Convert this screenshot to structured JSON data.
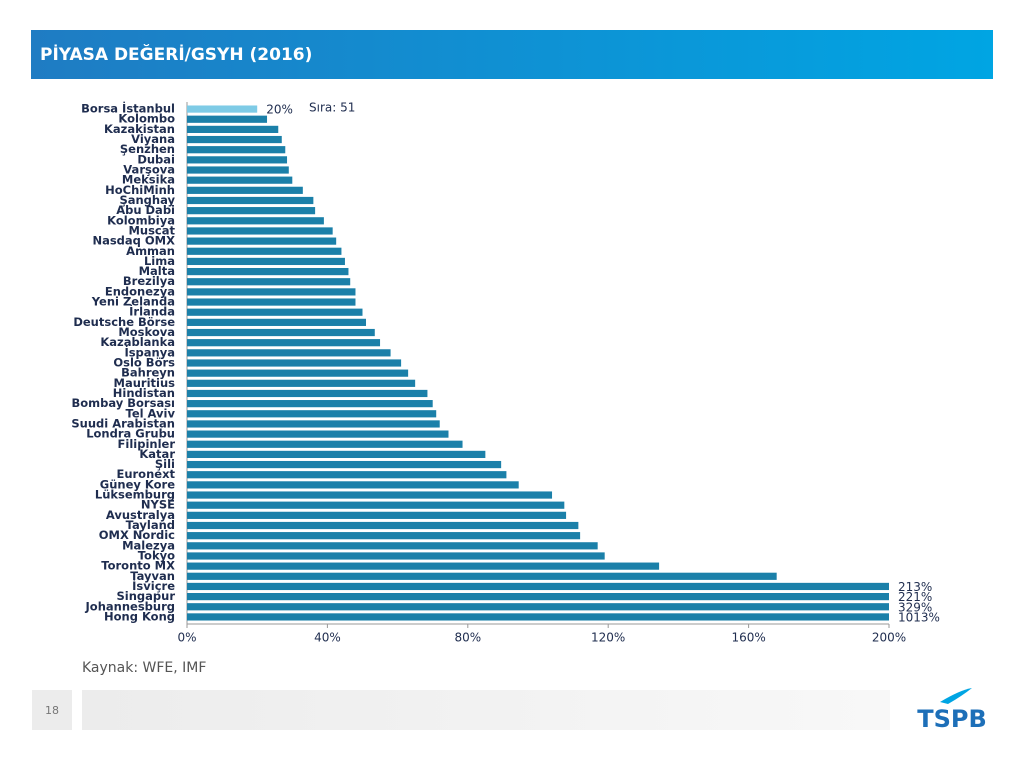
{
  "header": {
    "title": "PİYASA DEĞERİ/GSYH (2016)"
  },
  "chart_data": {
    "type": "hbar",
    "annotation": "Sıra: 51",
    "categories": [
      "Borsa İstanbul",
      "Kolombo",
      "Kazakistan",
      "Viyana",
      "Şenzhen",
      "Dubai",
      "Varşova",
      "Meksika",
      "HoChiMinh",
      "Şanghay",
      "Abu Dabi",
      "Kolombiya",
      "Muscat",
      "Nasdaq OMX",
      "Amman",
      "Lima",
      "Malta",
      "Brezilya",
      "Endonezya",
      "Yeni Zelanda",
      "İrlanda",
      "Deutsche Börse",
      "Moskova",
      "Kazablanka",
      "İspanya",
      "Oslo Börs",
      "Bahreyn",
      "Mauritius",
      "Hindistan",
      "Bombay Borsası",
      "Tel Aviv",
      "Suudi Arabistan",
      "Londra Grubu",
      "Filipinler",
      "Katar",
      "Şili",
      "Euronext",
      "Güney Kore",
      "Lüksemburg",
      "NYSE",
      "Avustralya",
      "Tayland",
      "OMX Nordic",
      "Malezya",
      "Tokyo",
      "Toronto MX",
      "Tayvan",
      "İsviçre",
      "Singapur",
      "Johannesburg",
      "Hong Kong"
    ],
    "values": [
      20,
      22.8,
      26,
      27,
      28,
      28.5,
      29,
      30,
      33,
      36,
      36.5,
      39,
      41.5,
      42.5,
      44,
      45,
      46,
      46.5,
      48,
      48,
      50,
      51,
      53.5,
      55,
      58,
      61,
      63,
      65,
      68.5,
      70,
      71,
      72,
      74.5,
      78.5,
      85,
      89.5,
      91,
      94.5,
      104,
      107.5,
      108,
      111.5,
      112,
      117,
      119,
      134.5,
      168,
      213,
      221,
      329,
      1013
    ],
    "value_labels": [
      "20%",
      null,
      null,
      null,
      null,
      null,
      null,
      null,
      null,
      null,
      null,
      null,
      null,
      null,
      null,
      null,
      null,
      null,
      null,
      null,
      null,
      null,
      null,
      null,
      null,
      null,
      null,
      null,
      null,
      null,
      null,
      null,
      null,
      null,
      null,
      null,
      null,
      null,
      null,
      null,
      null,
      null,
      null,
      null,
      null,
      null,
      null,
      "213%",
      "221%",
      "329%",
      "1013%"
    ],
    "colors": [
      "#7ecbe6",
      "#1b80a9",
      "#1b80a9",
      "#1b80a9",
      "#1b80a9",
      "#1b80a9",
      "#1b80a9",
      "#1b80a9",
      "#1b80a9",
      "#1b80a9",
      "#1b80a9",
      "#1b80a9",
      "#1b80a9",
      "#1b80a9",
      "#1b80a9",
      "#1b80a9",
      "#1b80a9",
      "#1b80a9",
      "#1b80a9",
      "#1b80a9",
      "#1b80a9",
      "#1b80a9",
      "#1b80a9",
      "#1b80a9",
      "#1b80a9",
      "#1b80a9",
      "#1b80a9",
      "#1b80a9",
      "#1b80a9",
      "#1b80a9",
      "#1b80a9",
      "#1b80a9",
      "#1b80a9",
      "#1b80a9",
      "#1b80a9",
      "#1b80a9",
      "#1b80a9",
      "#1b80a9",
      "#1b80a9",
      "#1b80a9",
      "#1b80a9",
      "#1b80a9",
      "#1b80a9",
      "#1b80a9",
      "#1b80a9",
      "#1b80a9",
      "#1b80a9",
      "#1b80a9",
      "#1b80a9",
      "#1b80a9",
      "#1b80a9"
    ],
    "xlim": [
      0,
      200
    ],
    "xticks": [
      {
        "value": 0,
        "label": "0%"
      },
      {
        "value": 40,
        "label": "40%"
      },
      {
        "value": 80,
        "label": "80%"
      },
      {
        "value": 120,
        "label": "120%"
      },
      {
        "value": 160,
        "label": "160%"
      },
      {
        "value": 200,
        "label": "200%"
      }
    ]
  },
  "footer": {
    "source": "Kaynak: WFE, IMF",
    "page": "18",
    "logo": "TSPB"
  }
}
